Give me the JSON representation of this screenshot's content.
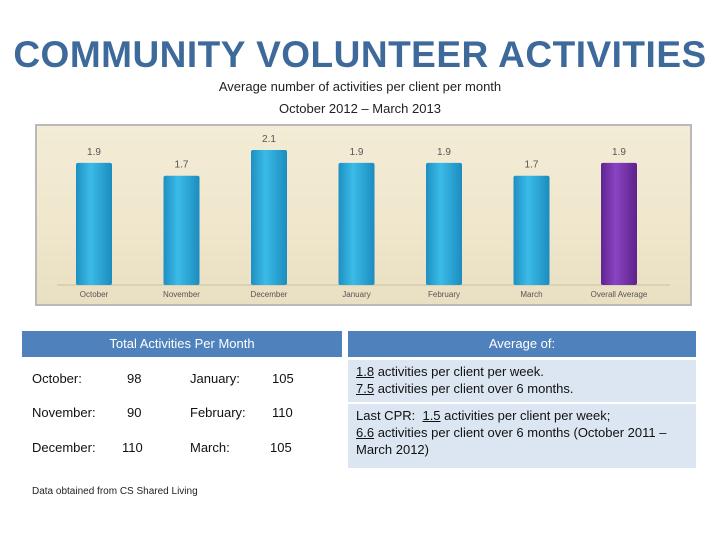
{
  "title": "COMMUNITY VOLUNTEER ACTIVITIES",
  "subtitle_1": "Average number of activities per client per month",
  "subtitle_2": "October 2012 – March 2013",
  "colors": {
    "bar": "#29a8d9",
    "bar_highlight": "#7a35b0",
    "header": "#4f81bd",
    "title": "#3d6a9a"
  },
  "chart_data": {
    "type": "bar",
    "categories": [
      "October",
      "November",
      "December",
      "January",
      "February",
      "March",
      "Overall Average"
    ],
    "values": [
      1.9,
      1.7,
      2.1,
      1.9,
      1.9,
      1.7,
      1.9
    ],
    "data_labels": [
      "1.9",
      "1.7",
      "2.1",
      "1.9",
      "1.9",
      "1.7",
      "1.9"
    ],
    "highlight_index": 6,
    "ylim": [
      0,
      2.1
    ],
    "grid": false,
    "legend": "none"
  },
  "totals_table": {
    "header": "Total Activities Per Month",
    "rows": [
      {
        "month_a": "October:",
        "value_a": "98",
        "month_b": "January:",
        "value_b": "105"
      },
      {
        "month_a": "November:",
        "value_a": "90",
        "month_b": "February:",
        "value_b": "110"
      },
      {
        "month_a": "December:",
        "value_a": "110",
        "month_b": "March:",
        "value_b": "105"
      }
    ]
  },
  "average_box": {
    "header": "Average of:",
    "row1": {
      "v1": "1.8",
      "t1": " activities per client per week.",
      "v2": "7.5",
      "t2": " activities per client over 6 months."
    },
    "row2": {
      "prefix": "Last CPR:  ",
      "v1": "1.5",
      "t1": " activities per client per week;",
      "v2": "6.6",
      "t2": " activities per client over 6 months (October 2011 – March 2012)"
    }
  },
  "footnote": "Data obtained from CS Shared Living"
}
